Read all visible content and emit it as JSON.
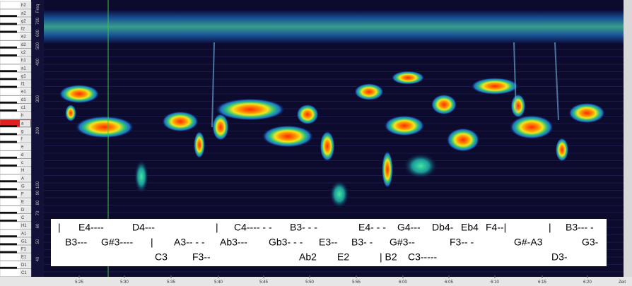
{
  "piano_keys": [
    "h2",
    "a2",
    "g2",
    "f2",
    "e2",
    "d2",
    "c2",
    "h1",
    "a1",
    "g1",
    "f1",
    "e1",
    "d1",
    "c1",
    "h",
    "a",
    "g",
    "f",
    "e",
    "d",
    "c",
    "H",
    "A",
    "G",
    "F",
    "E",
    "D",
    "C",
    "H1",
    "A1",
    "G1",
    "F1",
    "E1",
    "D1",
    "C1"
  ],
  "frequency_axis": {
    "title": "Freq",
    "labels": [
      "700",
      "600",
      "500",
      "400",
      "300",
      "200",
      "100",
      "90",
      "80",
      "70",
      "60",
      "50",
      "40"
    ]
  },
  "time_axis": {
    "title": "Zeit",
    "labels": [
      "5:25",
      "5:30",
      "5:35",
      "5:40",
      "5:45",
      "5:50",
      "5:55",
      "6:00",
      "6:05",
      "6:10",
      "6:15",
      "6:20"
    ]
  },
  "annotations": {
    "rows": [
      [
        "|",
        "E4----",
        "D4---",
        "|",
        "C4---- - -",
        "B3- - -",
        "E4- - -",
        "G4---",
        "Db4-",
        "Eb4",
        "F4--|",
        "|",
        "B3--- -"
      ],
      [
        "B3---",
        "G#3----",
        "|",
        "A3-- - -",
        "Ab3---",
        "Gb3- - -",
        "E3--",
        "B3- -",
        "G#3--",
        "F3-- -",
        "G#-A3",
        "G3-"
      ],
      [
        "C3",
        "F3--",
        "Ab2",
        "E2",
        "| B2",
        "C3-----",
        "D3-"
      ]
    ]
  }
}
